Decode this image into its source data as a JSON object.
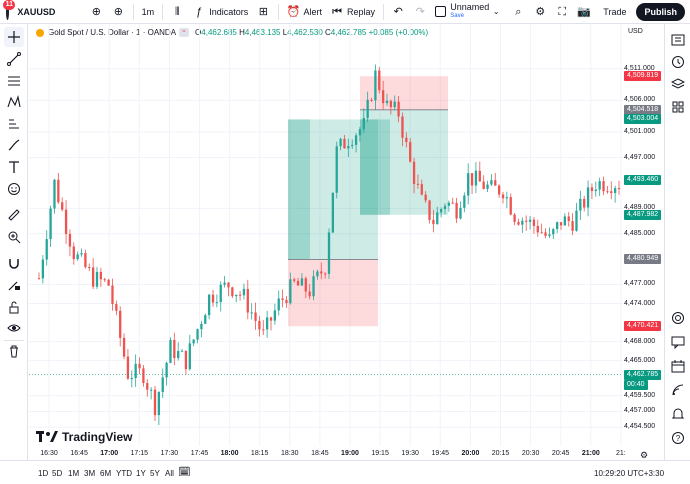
{
  "topbar": {
    "avatar_badge": "11",
    "symbol": "XAUUSD",
    "interval": "1m",
    "indicators": "Indicators",
    "alert": "Alert",
    "replay": "Replay",
    "layout_name": "Unnamed",
    "layout_status": "Save",
    "trade": "Trade",
    "publish": "Publish"
  },
  "legend": {
    "title": "Gold Spot / U.S. Dollar · 1 · OANDA",
    "open_label": "O",
    "open": "4,462.685",
    "high_label": "H",
    "high": "4,463.135",
    "low_label": "L",
    "low": "4,462.530",
    "close_label": "C",
    "close": "4,462.785",
    "change": "+0.085 (+0.00%)"
  },
  "price_axis": {
    "currency": "USD",
    "ticks": [
      "4,511.000",
      "4,506.000",
      "4,501.000",
      "4,497.000",
      "4,489.000",
      "4,485.000",
      "4,477.000",
      "4,474.000",
      "4,468.000",
      "4,465.000",
      "4,459.500",
      "4,457.000",
      "4,454.500"
    ],
    "tag_red_top": "4,509.819",
    "tag_grey_mid": "4,504.518",
    "tag_green_top": "4,503.004",
    "tag_current": "4,493.460",
    "tag_green_low": "4,487.982",
    "tag_grey_low": "4,480.949",
    "tag_red_low": "4,470.421",
    "tag_last": "4,462.785",
    "tag_countdown": "00:40"
  },
  "time_axis": {
    "labels": [
      "16:30",
      "16:45",
      "17:00",
      "17:15",
      "17:30",
      "17:45",
      "18:00",
      "18:15",
      "18:30",
      "18:45",
      "19:00",
      "19:15",
      "19:30",
      "19:45",
      "20:00",
      "20:15",
      "20:30",
      "20:45",
      "21:00",
      "21:"
    ],
    "bold": [
      "17:00",
      "18:00",
      "19:00",
      "20:00",
      "21:00"
    ]
  },
  "branding": "TradingView",
  "bottombar": {
    "ranges": [
      "1D",
      "5D",
      "1M",
      "3M",
      "6M",
      "YTD",
      "1Y",
      "5Y",
      "All"
    ],
    "clock": "10:29:20 UTC+3:30"
  },
  "colors": {
    "up": "#26a69a",
    "down": "#ef5350",
    "accent": "#2962ff",
    "profit_zone": "#089981",
    "loss_zone": "#f23645"
  },
  "chart_data": {
    "type": "candlestick",
    "title": "Gold Spot / U.S. Dollar · 1 · OANDA",
    "xlabel": "",
    "ylabel": "",
    "ylim": [
      4452.5,
      4513
    ],
    "series": [
      {
        "name": "XAUUSD",
        "trend": [
          [
            0,
            4478
          ],
          [
            4,
            4493
          ],
          [
            9,
            4482
          ],
          [
            14,
            4478
          ],
          [
            18,
            4477
          ],
          [
            23,
            4463
          ],
          [
            27,
            4463
          ],
          [
            30,
            4458
          ],
          [
            34,
            4467
          ],
          [
            38,
            4465
          ],
          [
            44,
            4475
          ],
          [
            49,
            4477
          ],
          [
            53,
            4475
          ],
          [
            58,
            4469
          ],
          [
            62,
            4474
          ],
          [
            66,
            4477
          ],
          [
            70,
            4476
          ],
          [
            74,
            4480
          ],
          [
            77,
            4498
          ],
          [
            80,
            4500
          ],
          [
            84,
            4502
          ],
          [
            87,
            4510
          ],
          [
            90,
            4505
          ],
          [
            93,
            4504
          ],
          [
            96,
            4496
          ],
          [
            99,
            4490
          ],
          [
            102,
            4487
          ],
          [
            105,
            4490
          ],
          [
            108,
            4489
          ],
          [
            111,
            4494
          ],
          [
            114,
            4493
          ],
          [
            117,
            4492
          ],
          [
            120,
            4492
          ],
          [
            123,
            4488
          ],
          [
            126,
            4487
          ],
          [
            129,
            4486
          ],
          [
            132,
            4484
          ],
          [
            135,
            4487
          ],
          [
            138,
            4487
          ],
          [
            141,
            4490
          ],
          [
            144,
            4493
          ],
          [
            147,
            4493
          ],
          [
            150,
            4493
          ]
        ]
      }
    ],
    "positions": [
      {
        "kind": "long",
        "entry": 4504.518,
        "target": 4509.819,
        "stop": 4487.982
      },
      {
        "kind": "long",
        "entry": 4480.949,
        "target": 4503.004,
        "stop": 4470.421
      }
    ]
  }
}
